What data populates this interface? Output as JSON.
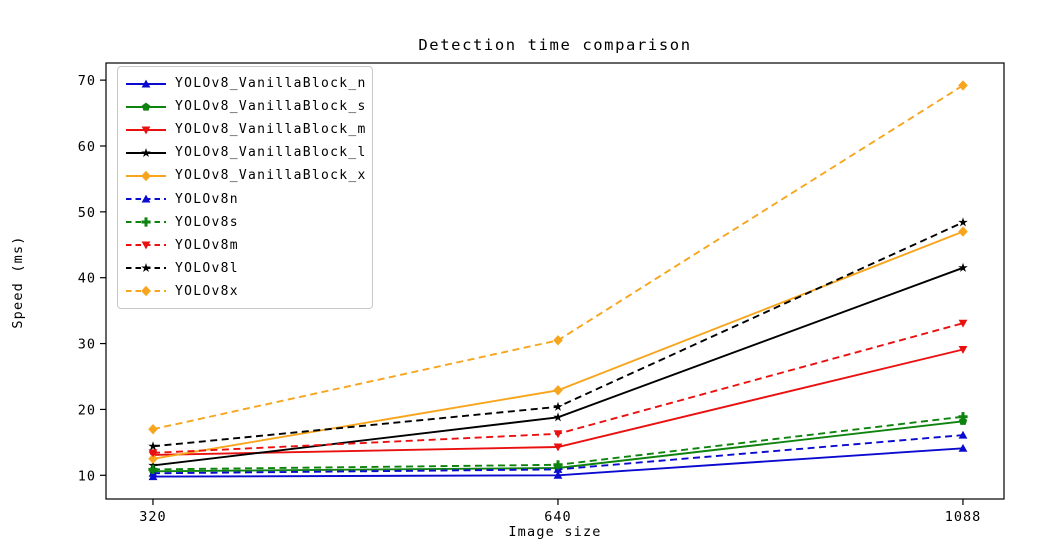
{
  "figure": {
    "background": "#ffffff"
  },
  "chart_data": {
    "type": "line",
    "title": "Detection time comparison",
    "xlabel": "Image size",
    "ylabel": "Speed (ms)",
    "categories": [
      320,
      640,
      1088
    ],
    "x_tick_labels": [
      "320",
      "640",
      "1088"
    ],
    "y_ticks": [
      10,
      20,
      30,
      40,
      50,
      60,
      70
    ],
    "ylim": [
      6.4,
      72.6
    ],
    "grid": false,
    "legend_position": "upper-left",
    "series": [
      {
        "name": "YOLOv8_VanillaBlock_n",
        "color": "#0b0bd0",
        "line_style": "solid",
        "marker": "triangle-up",
        "values": [
          9.8,
          10.0,
          14.1
        ]
      },
      {
        "name": "YOLOv8_VanillaBlock_s",
        "color": "#0e840e",
        "line_style": "solid",
        "marker": "pentagon",
        "values": [
          10.6,
          11.1,
          18.2
        ]
      },
      {
        "name": "YOLOv8_VanillaBlock_m",
        "color": "#ea1010",
        "line_style": "solid",
        "marker": "triangle-down",
        "values": [
          13.1,
          14.3,
          29.1
        ]
      },
      {
        "name": "YOLOv8_VanillaBlock_l",
        "color": "#000000",
        "line_style": "solid",
        "marker": "star",
        "values": [
          11.5,
          18.8,
          41.5
        ]
      },
      {
        "name": "YOLOv8_VanillaBlock_x",
        "color": "#f7a51d",
        "line_style": "solid",
        "marker": "diamond",
        "values": [
          12.5,
          22.9,
          47.0
        ]
      },
      {
        "name": "YOLOv8n",
        "color": "#0b0bd0",
        "line_style": "dashed",
        "marker": "triangle-up",
        "values": [
          10.3,
          10.9,
          16.1
        ]
      },
      {
        "name": "YOLOv8s",
        "color": "#0e840e",
        "line_style": "dashed",
        "marker": "plus",
        "values": [
          10.9,
          11.6,
          18.9
        ]
      },
      {
        "name": "YOLOv8m",
        "color": "#ea1010",
        "line_style": "dashed",
        "marker": "triangle-down",
        "values": [
          13.4,
          16.3,
          33.1
        ]
      },
      {
        "name": "YOLOv8l",
        "color": "#000000",
        "line_style": "dashed",
        "marker": "star",
        "values": [
          14.4,
          20.4,
          48.4
        ]
      },
      {
        "name": "YOLOv8x",
        "color": "#f7a51d",
        "line_style": "dashed",
        "marker": "diamond",
        "values": [
          17.0,
          30.5,
          69.2
        ]
      }
    ]
  }
}
